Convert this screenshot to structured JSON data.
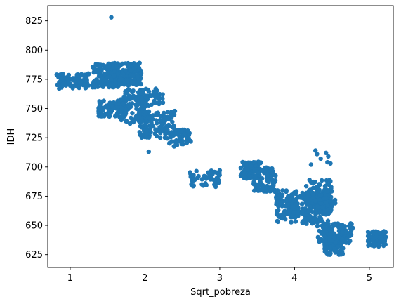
{
  "chart_data": {
    "type": "scatter",
    "title": "",
    "xlabel": "Sqrt_pobreza",
    "ylabel": "IDH",
    "xlim": [
      0.7,
      5.32
    ],
    "ylim": [
      614,
      838
    ],
    "xticks": [
      1,
      2,
      3,
      4,
      5
    ],
    "yticks": [
      625,
      650,
      675,
      700,
      725,
      750,
      775,
      800,
      825
    ],
    "grid": false,
    "marker_color": "#1f77b4",
    "clusters": [
      {
        "x": [
          0.82,
          1.25
        ],
        "y": [
          767,
          780
        ],
        "n": 90
      },
      {
        "x": [
          1.3,
          1.65
        ],
        "y": [
          768,
          789
        ],
        "n": 150
      },
      {
        "x": [
          1.62,
          1.95
        ],
        "y": [
          770,
          789
        ],
        "n": 130
      },
      {
        "x": [
          1.38,
          1.75
        ],
        "y": [
          743,
          757
        ],
        "n": 100
      },
      {
        "x": [
          1.65,
          2.05
        ],
        "y": [
          738,
          760
        ],
        "n": 90
      },
      {
        "x": [
          1.7,
          2.25
        ],
        "y": [
          752,
          767
        ],
        "n": 70
      },
      {
        "x": [
          1.92,
          2.4
        ],
        "y": [
          725,
          748
        ],
        "n": 140
      },
      {
        "x": [
          2.3,
          2.62
        ],
        "y": [
          717,
          732
        ],
        "n": 60
      },
      {
        "x": [
          2.6,
          3.0
        ],
        "y": [
          683,
          697
        ],
        "n": 50
      },
      {
        "x": [
          3.28,
          3.55
        ],
        "y": [
          690,
          705
        ],
        "n": 80
      },
      {
        "x": [
          3.45,
          3.75
        ],
        "y": [
          678,
          700
        ],
        "n": 90
      },
      {
        "x": [
          3.75,
          4.05
        ],
        "y": [
          653,
          680
        ],
        "n": 110
      },
      {
        "x": [
          3.95,
          4.45
        ],
        "y": [
          651,
          678
        ],
        "n": 150
      },
      {
        "x": [
          4.15,
          4.5
        ],
        "y": [
          661,
          689
        ],
        "n": 100
      },
      {
        "x": [
          4.3,
          4.55
        ],
        "y": [
          665,
          682
        ],
        "n": 40
      },
      {
        "x": [
          4.3,
          4.78
        ],
        "y": [
          635,
          652
        ],
        "n": 120
      },
      {
        "x": [
          4.4,
          4.65
        ],
        "y": [
          625,
          640
        ],
        "n": 80
      },
      {
        "x": [
          4.98,
          5.22
        ],
        "y": [
          632,
          645
        ],
        "n": 90
      }
    ],
    "points": [
      [
        1.55,
        828
      ],
      [
        4.28,
        714
      ],
      [
        4.3,
        711
      ],
      [
        4.42,
        712
      ],
      [
        4.45,
        709
      ],
      [
        4.22,
        702
      ],
      [
        4.44,
        704
      ],
      [
        4.48,
        703
      ],
      [
        4.35,
        707
      ],
      [
        1.8,
        737
      ],
      [
        2.05,
        713
      ],
      [
        3.0,
        697
      ]
    ]
  }
}
